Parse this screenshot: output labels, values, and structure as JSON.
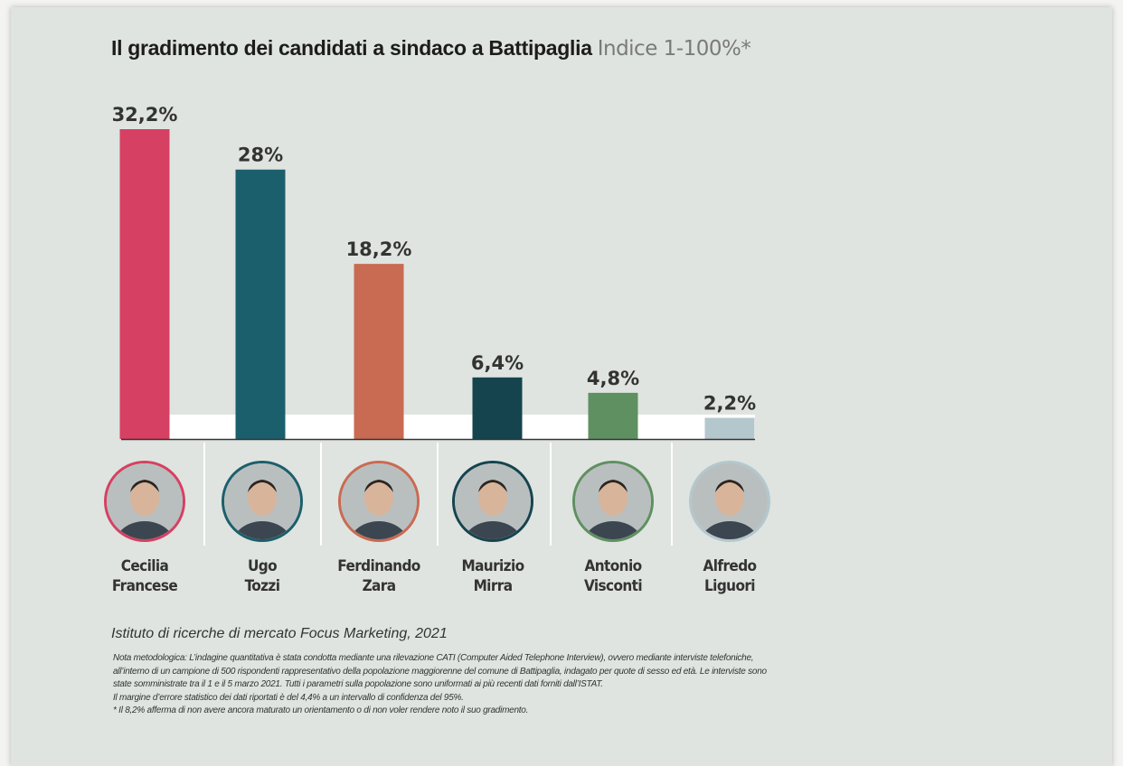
{
  "chart_data": {
    "type": "bar",
    "title": "Il gradimento dei candidati a sindaco a Battipaglia",
    "subtitle": "Indice 1-100%*",
    "categories": [
      "Cecilia Francese",
      "Ugo Tozzi",
      "Ferdinando Zara",
      "Maurizio Mirra",
      "Antonio Visconti",
      "Alfredo Liguori"
    ],
    "values": [
      32.2,
      28,
      18.2,
      6.4,
      4.8,
      2.2
    ],
    "value_labels": [
      "32,2%",
      "28%",
      "18,2%",
      "6,4%",
      "4,8%",
      "2,2%"
    ],
    "colors": [
      "#d64062",
      "#1c5f6c",
      "#c96a52",
      "#15444f",
      "#5f9061",
      "#b4c7cd"
    ],
    "ylim": [
      0,
      32.2
    ],
    "grid": false,
    "legend": "none"
  },
  "candidates": [
    {
      "first": "Cecilia",
      "last": "Francese",
      "ring": "#d64062"
    },
    {
      "first": "Ugo",
      "last": "Tozzi",
      "ring": "#1c5f6c"
    },
    {
      "first": "Ferdinando",
      "last": "Zara",
      "ring": "#c96a52"
    },
    {
      "first": "Maurizio",
      "last": "Mirra",
      "ring": "#15444f"
    },
    {
      "first": "Antonio",
      "last": "Visconti",
      "ring": "#5f9061"
    },
    {
      "first": "Alfredo",
      "last": "Liguori",
      "ring": "#b4c7cd"
    }
  ],
  "source": "Istituto di ricerche di mercato Focus Marketing, 2021",
  "notes": [
    "Nota metodologica: L’indagine quantitativa è stata condotta mediante una rilevazione CATI (Computer Aided Telephone Interview), ovvero mediante interviste telefoniche, all’interno di un campione di 500 rispondenti rappresentativo della popolazione maggiorenne del comune di Battipaglia, indagato per quote di sesso ed età. Le interviste sono state somministrate tra il 1 e il 5 marzo 2021. Tutti i parametri sulla popolazione sono uniformati ai più recenti dati forniti dall’ISTAT.",
    "Il margine d’errore statistico dei dati riportati è del 4,4% a un intervallo di confidenza del 95%.",
    "* Il 8,2% afferma di non avere ancora maturato un orientamento o di non voler rendere noto il suo gradimento."
  ]
}
